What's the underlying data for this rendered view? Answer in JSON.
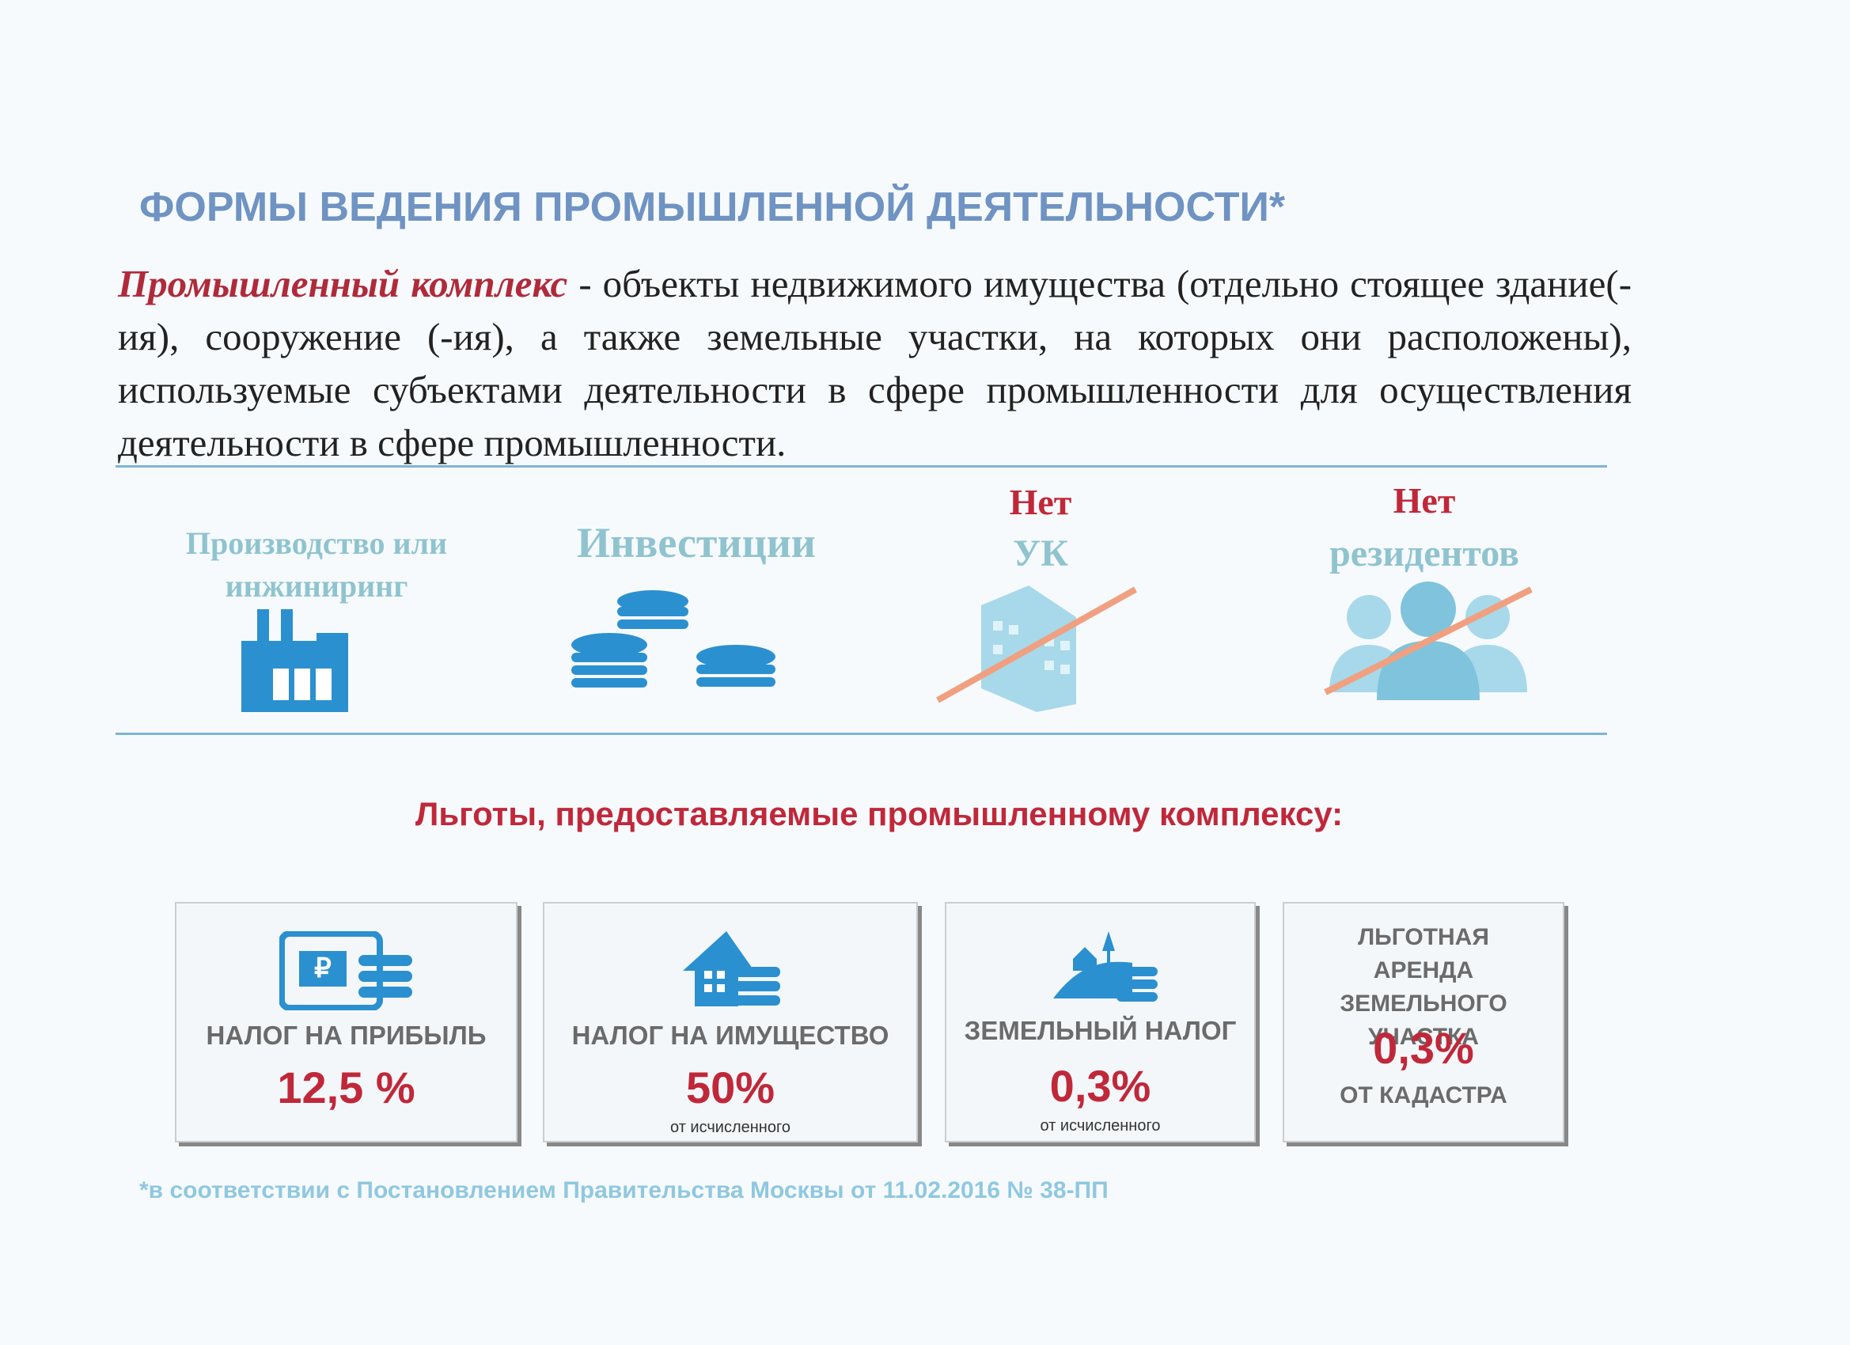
{
  "title": "ФОРМЫ ВЕДЕНИЯ ПРОМЫШЛЕННОЙ ДЕЯТЕЛЬНОСТИ*",
  "definition": {
    "term": "Промышленный комплекс",
    "text": "- объекты недвижимого имущества (отдельно стоящее здание(-ия), сооружение (-ия), а также земельные участки, на которых они расположены), используемые субъектами деятельности в сфере промышленности для осуществления деятельности в сфере промышленности."
  },
  "forms": [
    {
      "label": "Производство или инжиниринг"
    },
    {
      "label": "Инвестиции"
    },
    {
      "negation": "Нет",
      "label": "УК"
    },
    {
      "negation": "Нет",
      "label": "резидентов"
    }
  ],
  "benefits": {
    "title": "Льготы, предоставляемые промышленному комплексу:",
    "items": [
      {
        "name": "НАЛОГ НА ПРИБЫЛЬ",
        "value": "12,5 %"
      },
      {
        "name": "НАЛОГ НА ИМУЩЕСТВО",
        "value": "50%",
        "note": "от исчисленного"
      },
      {
        "name": "ЗЕМЕЛЬНЫЙ НАЛОГ",
        "value": "0,3%",
        "note": "от исчисленного"
      },
      {
        "name": "ЛЬГОТНАЯ АРЕНДА ЗЕМЕЛЬНОГО УЧАСТКА",
        "value": "0,3%",
        "note": "ОТ КАДАСТРА"
      }
    ]
  },
  "footnote": "*в соответствии с Постановлением Правительства Москвы от 11.02.2016 № 38-ПП"
}
